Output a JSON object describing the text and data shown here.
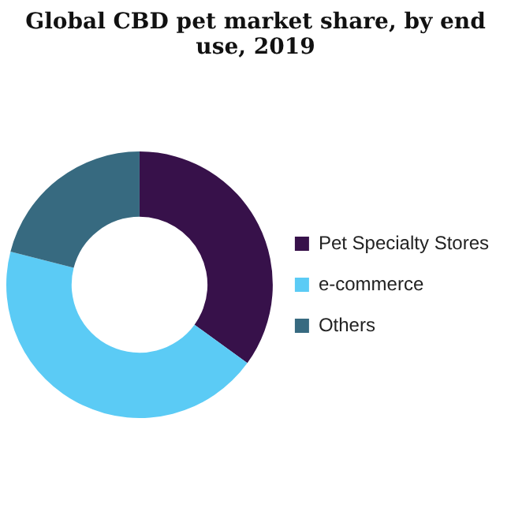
{
  "chart_data": {
    "type": "donut",
    "title": "Global CBD pet market share, by end use, 2019",
    "categories": [
      "Pet Specialty Stores",
      "e-commerce",
      "Others"
    ],
    "values": [
      35,
      44,
      21
    ],
    "colors": [
      "#37114a",
      "#5bcbf5",
      "#376a80"
    ],
    "legend": "right"
  }
}
